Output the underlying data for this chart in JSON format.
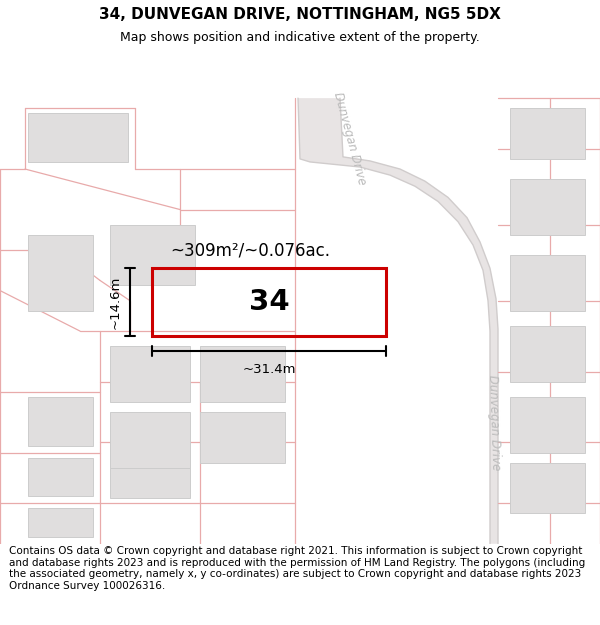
{
  "title": "34, DUNVEGAN DRIVE, NOTTINGHAM, NG5 5DX",
  "subtitle": "Map shows position and indicative extent of the property.",
  "footer": "Contains OS data © Crown copyright and database right 2021. This information is subject to Crown copyright and database rights 2023 and is reproduced with the permission of HM Land Registry. The polygons (including the associated geometry, namely x, y co-ordinates) are subject to Crown copyright and database rights 2023 Ordnance Survey 100026316.",
  "map_bg": "#f5f3f3",
  "building_fill": "#e0dede",
  "building_edge": "#cccccc",
  "road_fill": "#e8e4e4",
  "pink_color": "#e8aaaa",
  "red_color": "#cc0000",
  "street_label_color": "#bbbbbb",
  "street_label": "Dunvegan Drive",
  "area_label": "~309m²/~0.076ac.",
  "plot_number": "34",
  "width_label": "~31.4m",
  "height_label": "~14.6m",
  "title_fontsize": 11,
  "subtitle_fontsize": 9,
  "footer_fontsize": 7.5
}
